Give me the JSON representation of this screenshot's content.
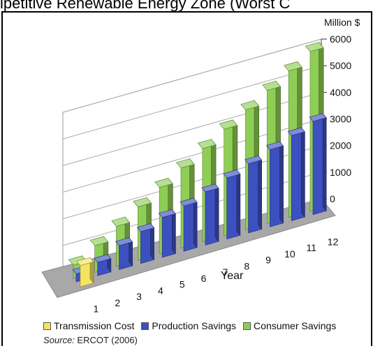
{
  "header": {
    "title_partial": "ipetitive Renewable Energy Zone (Worst C"
  },
  "chart_data": {
    "type": "bar",
    "title": "",
    "unit_label": "Million $",
    "xlabel": "Year",
    "ylabel": "",
    "categories": [
      "1",
      "2",
      "3",
      "4",
      "5",
      "6",
      "7",
      "8",
      "9",
      "10",
      "11",
      "12"
    ],
    "ylim": [
      0,
      6000
    ],
    "yticks": [
      0,
      1000,
      2000,
      3000,
      4000,
      5000,
      6000
    ],
    "grid": true,
    "legend_position": "bottom",
    "series": [
      {
        "name": "Transmission Cost",
        "color": "#f5e460",
        "values": [
          800,
          null,
          null,
          null,
          null,
          null,
          null,
          null,
          null,
          null,
          null,
          null
        ]
      },
      {
        "name": "Production Savings",
        "color": "#3d50c0",
        "values": [
          300,
          500,
          900,
          1200,
          1500,
          1700,
          2000,
          2300,
          2600,
          2900,
          3200,
          3500
        ]
      },
      {
        "name": "Consumer Savings",
        "color": "#8fce55",
        "values": [
          500,
          1000,
          1500,
          2000,
          2500,
          3000,
          3500,
          4000,
          4500,
          5000,
          5500,
          6000
        ]
      }
    ]
  },
  "source": {
    "label": "Source:",
    "text": " ERCOT (2006)"
  }
}
